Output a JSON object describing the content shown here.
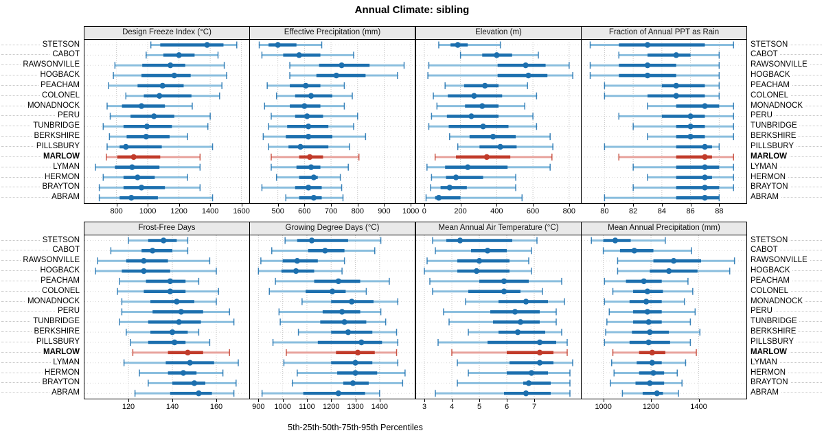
{
  "title": "Annual Climate: sibling",
  "caption": "5th-25th-50th-75th-95th Percentiles",
  "highlighted_site": "MARLOW",
  "sites": [
    "STETSON",
    "CABOT",
    "RAWSONVILLE",
    "HOGBACK",
    "PEACHAM",
    "COLONEL",
    "MONADNOCK",
    "PERU",
    "TUNBRIDGE",
    "BERKSHIRE",
    "PILLSBURY",
    "MARLOW",
    "LYMAN",
    "HERMON",
    "BRAYTON",
    "ABRAM"
  ],
  "colors": {
    "series_blue": {
      "line": "#8abede",
      "bar": "#1c6fae",
      "point": "#1c6fae"
    },
    "series_red": {
      "line": "#e8a39d",
      "bar": "#c13b2a",
      "point": "#c13b2a"
    },
    "grid": "#c9c9c9",
    "row_guide": "#d8d8d8",
    "strip_bg": "#e9e9e9",
    "border": "#000000"
  },
  "chart_data": {
    "type": "table",
    "subtype": "trellis-percentile-dotplot",
    "percentile_labels": [
      "5th",
      "25th",
      "50th",
      "75th",
      "95th"
    ],
    "panels": [
      {
        "title": "Design Freeze Index (°C)",
        "row": 1,
        "ticks": [
          800,
          1000,
          1200,
          1400,
          1600
        ],
        "range": [
          595,
          1650
        ],
        "values": {
          "STETSON": [
            1020,
            1080,
            1380,
            1485,
            1570
          ],
          "CABOT": [
            990,
            1100,
            1200,
            1300,
            1450
          ],
          "RAWSONVILLE": [
            790,
            965,
            1145,
            1240,
            1490
          ],
          "HOGBACK": [
            780,
            960,
            1170,
            1275,
            1505
          ],
          "PEACHAM": [
            750,
            935,
            1095,
            1230,
            1475
          ],
          "COLONEL": [
            860,
            975,
            1075,
            1280,
            1460
          ],
          "MONADNOCK": [
            740,
            835,
            960,
            1110,
            1285
          ],
          "PERU": [
            760,
            890,
            1040,
            1170,
            1400
          ],
          "TUNBRIDGE": [
            715,
            845,
            995,
            1155,
            1385
          ],
          "BERKSHIRE": [
            755,
            865,
            990,
            1140,
            1255
          ],
          "PILLSBURY": [
            740,
            820,
            860,
            1090,
            1415
          ],
          "MARLOW": [
            735,
            805,
            910,
            1080,
            1335
          ],
          "LYMAN": [
            665,
            790,
            900,
            1075,
            1335
          ],
          "HERMON": [
            715,
            845,
            935,
            1045,
            1255
          ],
          "BRAYTON": [
            690,
            845,
            960,
            1110,
            1335
          ],
          "ABRAM": [
            690,
            820,
            895,
            1065,
            1415
          ]
        }
      },
      {
        "title": "Effective Precipitation (mm)",
        "row": 1,
        "ticks": [
          500,
          600,
          700,
          800,
          900,
          1000
        ],
        "range": [
          395,
          1015
        ],
        "values": {
          "STETSON": [
            430,
            465,
            500,
            570,
            665
          ],
          "CABOT": [
            440,
            520,
            580,
            660,
            785
          ],
          "RAWSONVILLE": [
            545,
            655,
            740,
            845,
            975
          ],
          "HOGBACK": [
            545,
            645,
            720,
            830,
            950
          ],
          "PEACHAM": [
            460,
            545,
            605,
            660,
            750
          ],
          "COLONEL": [
            495,
            565,
            625,
            705,
            780
          ],
          "MONADNOCK": [
            450,
            545,
            600,
            660,
            750
          ],
          "PERU": [
            475,
            565,
            610,
            670,
            800
          ],
          "TUNBRIDGE": [
            465,
            535,
            615,
            690,
            785
          ],
          "BERKSHIRE": [
            445,
            530,
            615,
            705,
            830
          ],
          "PILLSBURY": [
            465,
            540,
            585,
            690,
            770
          ],
          "MARLOW": [
            475,
            580,
            620,
            670,
            805
          ],
          "LYMAN": [
            475,
            570,
            625,
            660,
            765
          ],
          "HERMON": [
            495,
            580,
            635,
            650,
            735
          ],
          "BRAYTON": [
            440,
            565,
            615,
            665,
            740
          ],
          "ABRAM": [
            530,
            580,
            635,
            665,
            745
          ]
        }
      },
      {
        "title": "Elevation (m)",
        "row": 1,
        "ticks": [
          0,
          200,
          400,
          600,
          800
        ],
        "range": [
          -45,
          865
        ],
        "values": {
          "STETSON": [
            80,
            145,
            185,
            240,
            420
          ],
          "CABOT": [
            200,
            320,
            400,
            485,
            630
          ],
          "RAWSONVILLE": [
            25,
            405,
            560,
            670,
            800
          ],
          "HOGBACK": [
            20,
            405,
            575,
            680,
            820
          ],
          "PEACHAM": [
            115,
            220,
            335,
            410,
            570
          ],
          "COLONEL": [
            50,
            130,
            275,
            430,
            620
          ],
          "MONADNOCK": [
            70,
            225,
            320,
            410,
            555
          ],
          "PERU": [
            40,
            125,
            260,
            410,
            600
          ],
          "TUNBRIDGE": [
            25,
            135,
            325,
            465,
            620
          ],
          "BERKSHIRE": [
            140,
            250,
            380,
            505,
            695
          ],
          "PILLSBURY": [
            185,
            305,
            420,
            510,
            710
          ],
          "MARLOW": [
            60,
            175,
            345,
            475,
            705
          ],
          "LYMAN": [
            15,
            115,
            240,
            460,
            695
          ],
          "HERMON": [
            40,
            120,
            175,
            325,
            505
          ],
          "BRAYTON": [
            35,
            90,
            140,
            235,
            505
          ],
          "ABRAM": [
            10,
            60,
            80,
            200,
            540
          ]
        }
      },
      {
        "title": "Fraction of Annual PPT as Rain",
        "row": 1,
        "ticks": [
          80,
          82,
          84,
          86,
          88
        ],
        "range": [
          78.4,
          89.9
        ],
        "values": {
          "STETSON": [
            79,
            81,
            83,
            87,
            89
          ],
          "CABOT": [
            81,
            83,
            85,
            86,
            88
          ],
          "RAWSONVILLE": [
            79,
            81,
            83,
            85,
            88
          ],
          "HOGBACK": [
            79,
            81,
            83,
            85,
            88
          ],
          "PEACHAM": [
            80,
            84,
            85,
            87,
            88
          ],
          "COLONEL": [
            80,
            83,
            85,
            87,
            88
          ],
          "MONADNOCK": [
            83,
            85,
            87,
            88,
            89
          ],
          "PERU": [
            81,
            84,
            86,
            87,
            89
          ],
          "TUNBRIDGE": [
            82,
            85,
            86,
            87,
            89
          ],
          "BERKSHIRE": [
            83,
            85,
            86,
            87,
            89
          ],
          "PILLSBURY": [
            80,
            85,
            87,
            87.5,
            88
          ],
          "MARLOW": [
            81,
            85,
            87,
            87.5,
            89
          ],
          "LYMAN": [
            82,
            85,
            87,
            88,
            89
          ],
          "HERMON": [
            83,
            85,
            87,
            87.5,
            89
          ],
          "BRAYTON": [
            82,
            85,
            87,
            88,
            89
          ],
          "ABRAM": [
            80,
            85,
            87,
            88,
            88
          ]
        }
      },
      {
        "title": "Frost-Free Days",
        "row": 2,
        "ticks": [
          120,
          140,
          160
        ],
        "range": [
          100,
          175
        ],
        "values": {
          "STETSON": [
            120,
            129,
            136,
            142,
            147
          ],
          "CABOT": [
            112,
            126,
            131,
            140,
            147
          ],
          "RAWSONVILLE": [
            106,
            119,
            127,
            138,
            157
          ],
          "HOGBACK": [
            105,
            117,
            127,
            139,
            160
          ],
          "PEACHAM": [
            116,
            128,
            139,
            146,
            152
          ],
          "COLONEL": [
            115,
            127,
            139,
            146,
            161
          ],
          "MONADNOCK": [
            117,
            130,
            142,
            150,
            160
          ],
          "PERU": [
            117,
            131,
            144,
            154,
            166
          ],
          "TUNBRIDGE": [
            116,
            129,
            143,
            153,
            168
          ],
          "BERKSHIRE": [
            119,
            130,
            140,
            147,
            152
          ],
          "PILLSBURY": [
            121,
            129,
            141,
            146,
            157
          ],
          "MARLOW": [
            122,
            138,
            147,
            154,
            166
          ],
          "LYMAN": [
            118,
            137,
            148,
            159,
            170
          ],
          "HERMON": [
            125,
            138,
            145,
            151,
            163
          ],
          "BRAYTON": [
            129,
            140,
            150,
            155,
            169
          ],
          "ABRAM": [
            123,
            139,
            152,
            158,
            168
          ]
        }
      },
      {
        "title": "Growing Degree Days (°C)",
        "row": 2,
        "ticks": [
          900,
          1000,
          1100,
          1200,
          1300,
          1400
        ],
        "range": [
          865,
          1545
        ],
        "values": {
          "STETSON": [
            1010,
            1060,
            1120,
            1270,
            1405
          ],
          "CABOT": [
            955,
            1105,
            1175,
            1255,
            1380
          ],
          "RAWSONVILLE": [
            910,
            1000,
            1060,
            1145,
            1255
          ],
          "HOGBACK": [
            900,
            995,
            1055,
            1130,
            1245
          ],
          "PEACHAM": [
            970,
            1130,
            1230,
            1320,
            1440
          ],
          "COLONEL": [
            945,
            1095,
            1205,
            1260,
            1345
          ],
          "MONADNOCK": [
            1080,
            1200,
            1285,
            1375,
            1475
          ],
          "PERU": [
            985,
            1165,
            1245,
            1320,
            1405
          ],
          "TUNBRIDGE": [
            990,
            1155,
            1255,
            1345,
            1425
          ],
          "BERKSHIRE": [
            1065,
            1200,
            1270,
            1370,
            1470
          ],
          "PILLSBURY": [
            960,
            1145,
            1325,
            1410,
            1475
          ],
          "MARLOW": [
            1015,
            1220,
            1310,
            1380,
            1470
          ],
          "LYMAN": [
            1005,
            1200,
            1300,
            1370,
            1475
          ],
          "HERMON": [
            1060,
            1225,
            1300,
            1390,
            1505
          ],
          "BRAYTON": [
            1040,
            1250,
            1290,
            1355,
            1495
          ],
          "ABRAM": [
            915,
            1085,
            1230,
            1340,
            1400
          ]
        }
      },
      {
        "title": "Mean Annual Air Temperature (°C)",
        "row": 2,
        "ticks": [
          3,
          4,
          5,
          6,
          7
        ],
        "range": [
          2.7,
          8.7
        ],
        "values": {
          "STETSON": [
            3.3,
            3.8,
            4.3,
            6.2,
            7.1
          ],
          "CABOT": [
            3.4,
            4.7,
            5.3,
            6.0,
            6.9
          ],
          "RAWSONVILLE": [
            3.1,
            4.2,
            5.0,
            6.1,
            6.8
          ],
          "HOGBACK": [
            3.0,
            4.2,
            4.9,
            6.1,
            6.9
          ],
          "PEACHAM": [
            3.2,
            5.0,
            5.9,
            6.8,
            8.0
          ],
          "COLONEL": [
            3.3,
            4.6,
            5.9,
            6.5,
            7.3
          ],
          "MONADNOCK": [
            4.5,
            5.7,
            6.7,
            7.5,
            8.1
          ],
          "PERU": [
            3.7,
            5.4,
            6.3,
            7.2,
            7.8
          ],
          "TUNBRIDGE": [
            3.9,
            5.5,
            6.5,
            7.2,
            7.8
          ],
          "BERKSHIRE": [
            4.6,
            5.7,
            6.4,
            7.4,
            8.0
          ],
          "PILLSBURY": [
            3.5,
            5.3,
            7.2,
            7.8,
            8.2
          ],
          "MARLOW": [
            4.0,
            6.0,
            7.2,
            7.7,
            8.2
          ],
          "LYMAN": [
            4.2,
            6.1,
            7.2,
            7.7,
            8.4
          ],
          "HERMON": [
            4.6,
            6.0,
            6.9,
            7.5,
            8.3
          ],
          "BRAYTON": [
            4.2,
            6.6,
            6.8,
            7.6,
            8.3
          ],
          "ABRAM": [
            3.4,
            5.9,
            6.7,
            7.6,
            8.3
          ]
        }
      },
      {
        "title": "Mean Annual Precipitation (mm)",
        "row": 2,
        "ticks": [
          1000,
          1200,
          1400
        ],
        "range": [
          909,
          1600
        ],
        "values": {
          "STETSON": [
            950,
            1000,
            1050,
            1115,
            1260
          ],
          "CABOT": [
            1000,
            1070,
            1130,
            1210,
            1370
          ],
          "RAWSONVILLE": [
            1060,
            1210,
            1295,
            1410,
            1550
          ],
          "HOGBACK": [
            1060,
            1195,
            1275,
            1395,
            1530
          ],
          "PEACHAM": [
            1005,
            1095,
            1170,
            1245,
            1355
          ],
          "COLONEL": [
            1040,
            1125,
            1185,
            1250,
            1375
          ],
          "MONADNOCK": [
            1005,
            1110,
            1180,
            1245,
            1340
          ],
          "PERU": [
            1025,
            1125,
            1185,
            1245,
            1385
          ],
          "TUNBRIDGE": [
            1015,
            1125,
            1190,
            1245,
            1365
          ],
          "BERKSHIRE": [
            1010,
            1120,
            1195,
            1275,
            1405
          ],
          "PILLSBURY": [
            1005,
            1110,
            1190,
            1280,
            1365
          ],
          "MARLOW": [
            1040,
            1150,
            1205,
            1260,
            1390
          ],
          "LYMAN": [
            1035,
            1140,
            1205,
            1245,
            1345
          ],
          "HERMON": [
            1045,
            1150,
            1210,
            1255,
            1310
          ],
          "BRAYTON": [
            1030,
            1135,
            1195,
            1255,
            1330
          ],
          "ABRAM": [
            1080,
            1165,
            1225,
            1250,
            1315
          ]
        }
      }
    ]
  }
}
